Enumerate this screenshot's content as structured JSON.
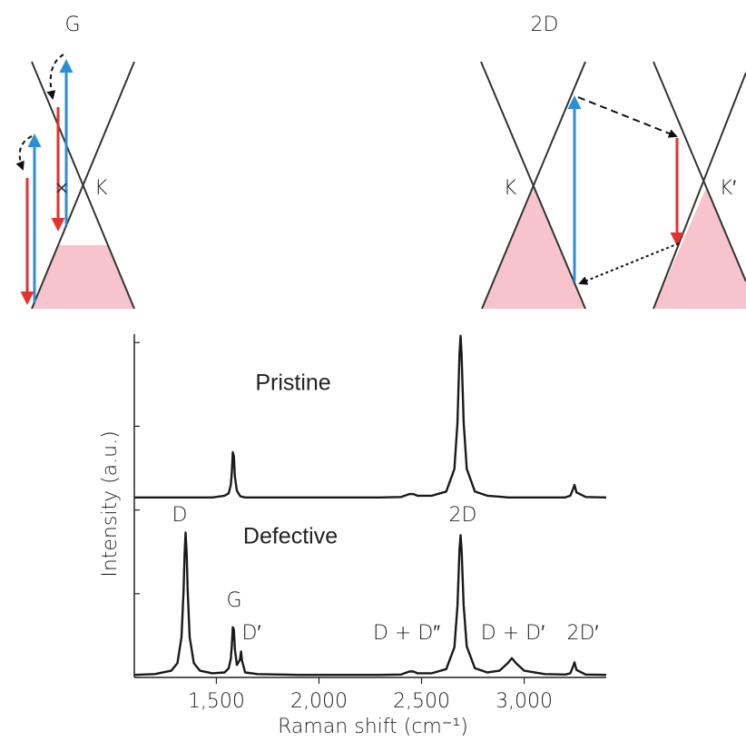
{
  "diagrams": {
    "g_panel": {
      "title": "G",
      "point": "K"
    },
    "d2_panel": {
      "title": "2D",
      "left_point": "K",
      "right_point": "K′"
    }
  },
  "chart_data": {
    "type": "line",
    "x_label": "Raman shift (cm⁻¹)",
    "y_label": "Intensity (a.u.)",
    "x": [
      1100,
      1200,
      1280,
      1310,
      1330,
      1340,
      1345,
      1350,
      1355,
      1360,
      1370,
      1390,
      1420,
      1480,
      1540,
      1560,
      1570,
      1575,
      1580,
      1585,
      1590,
      1600,
      1615,
      1620,
      1625,
      1640,
      1700,
      1900,
      2100,
      2300,
      2400,
      2440,
      2460,
      2480,
      2550,
      2620,
      2660,
      2675,
      2685,
      2690,
      2695,
      2705,
      2720,
      2760,
      2820,
      2880,
      2920,
      2940,
      2960,
      3000,
      3100,
      3200,
      3225,
      3240,
      3245,
      3255,
      3300,
      3400
    ],
    "series": [
      {
        "name": "Pristine",
        "color": "#1a1a1a",
        "values": [
          2.15,
          2.15,
          2.15,
          2.15,
          2.15,
          2.15,
          2.15,
          2.15,
          2.15,
          2.15,
          2.15,
          2.15,
          2.15,
          2.15,
          2.17,
          2.2,
          2.3,
          2.44,
          2.69,
          2.64,
          2.4,
          2.23,
          2.17,
          2.16,
          2.16,
          2.15,
          2.15,
          2.15,
          2.15,
          2.15,
          2.155,
          2.19,
          2.19,
          2.17,
          2.17,
          2.22,
          2.49,
          3.05,
          3.86,
          4.08,
          3.86,
          3.05,
          2.49,
          2.22,
          2.17,
          2.16,
          2.15,
          2.15,
          2.15,
          2.15,
          2.15,
          2.15,
          2.17,
          2.26,
          2.3,
          2.21,
          2.155,
          2.15
        ]
      },
      {
        "name": "Defective",
        "color": "#1a1a1a",
        "values": [
          0.03,
          0.04,
          0.08,
          0.17,
          0.48,
          1.04,
          1.48,
          1.73,
          1.48,
          1.04,
          0.48,
          0.17,
          0.08,
          0.05,
          0.06,
          0.11,
          0.22,
          0.37,
          0.6,
          0.57,
          0.34,
          0.15,
          0.21,
          0.31,
          0.2,
          0.06,
          0.04,
          0.03,
          0.03,
          0.03,
          0.035,
          0.07,
          0.07,
          0.05,
          0.05,
          0.1,
          0.36,
          0.86,
          1.53,
          1.7,
          1.53,
          0.86,
          0.37,
          0.11,
          0.06,
          0.08,
          0.17,
          0.23,
          0.17,
          0.08,
          0.04,
          0.035,
          0.05,
          0.14,
          0.18,
          0.09,
          0.035,
          0.03
        ]
      }
    ],
    "annotations": [
      "D",
      "2D",
      "G",
      "D′",
      "D + D″",
      "D + D′",
      "2D′"
    ],
    "xlim": [
      1100,
      3400
    ],
    "xticks": [
      {
        "value": 1500,
        "label": "1,500"
      },
      {
        "value": 2000,
        "label": "2,000"
      },
      {
        "value": 2500,
        "label": "2,500"
      },
      {
        "value": 3000,
        "label": "3,000"
      }
    ],
    "ylim": [
      0,
      4.1
    ],
    "yticks": [
      0,
      1,
      2,
      3,
      4
    ],
    "grid": false
  }
}
